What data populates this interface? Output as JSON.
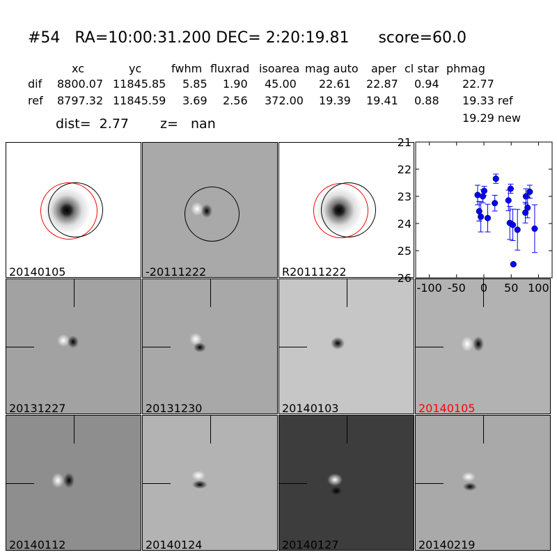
{
  "header": {
    "title": "#54   RA=10:00:31.200 DEC= 2:20:19.81      score=60.0"
  },
  "table": {
    "columns": [
      "xc",
      "yc",
      "fwhm",
      "fluxrad",
      "isoarea",
      "mag auto",
      "aper",
      "cl star",
      "phmag"
    ],
    "rows": [
      {
        "label": "dif",
        "values": [
          "8800.07",
          "11845.85",
          "5.85",
          "1.90",
          "45.00",
          "22.61",
          "22.87",
          "0.94",
          "22.77"
        ]
      },
      {
        "label": "ref",
        "values": [
          "8797.32",
          "11845.59",
          "3.69",
          "2.56",
          "372.00",
          "19.39",
          "19.41",
          "0.88",
          "19.33 ref"
        ]
      }
    ],
    "phmag_new": "19.29 new",
    "dist": "dist=  2.77",
    "z": "z=   nan"
  },
  "stamps": [
    {
      "label": "20140105",
      "bg": "#ffffff"
    },
    {
      "label": "-20111222",
      "bg": "#a9a9a9"
    },
    {
      "label": "R20111222",
      "bg": "#ffffff"
    },
    {
      "label": "20131227",
      "bg": "#a2a2a2"
    },
    {
      "label": "20131230",
      "bg": "#a8a8a8"
    },
    {
      "label": "20140103",
      "bg": "#c6c6c6"
    },
    {
      "label": "20140105",
      "bg": "#b2b2b2",
      "color": "#ff0000"
    },
    {
      "label": "20140112",
      "bg": "#8e8e8e"
    },
    {
      "label": "20140124",
      "bg": "#b3b3b3"
    },
    {
      "label": "20140127",
      "bg": "#3d3d3d"
    },
    {
      "label": "20140219",
      "bg": "#a9a9a9"
    }
  ],
  "chart_data": {
    "type": "scatter",
    "xlim": [
      -125,
      125
    ],
    "ylim": [
      26,
      21
    ],
    "y_inverted": true,
    "xticks": [
      "-100",
      "-50",
      "0",
      "50",
      "100"
    ],
    "xtick_values": [
      -100,
      -50,
      0,
      50,
      100
    ],
    "yticks": [
      "21",
      "22",
      "23",
      "24",
      "25",
      "26"
    ],
    "ytick_values": [
      21,
      22,
      23,
      24,
      25,
      26
    ],
    "marker_color": "#0000ff",
    "points": [
      {
        "x": -11.5,
        "y": 22.95,
        "err": 0.36
      },
      {
        "x": -8.6,
        "y": 23.55,
        "err": 0.36
      },
      {
        "x": -5.6,
        "y": 23.75,
        "err": 0.56
      },
      {
        "x": -2,
        "y": 23.0,
        "err": 0.24
      },
      {
        "x": 0.5,
        "y": 22.8,
        "err": 0.17
      },
      {
        "x": 7,
        "y": 23.8,
        "err": 0.51
      },
      {
        "x": 20,
        "y": 23.25,
        "err": 0.29
      },
      {
        "x": 22,
        "y": 22.35,
        "err": 0.17
      },
      {
        "x": 45,
        "y": 23.15,
        "err": 0.38
      },
      {
        "x": 49,
        "y": 22.72,
        "err": 0.17
      },
      {
        "x": 47.5,
        "y": 23.98,
        "err": 0.61
      },
      {
        "x": 53,
        "y": 24.05,
        "err": 0.58
      },
      {
        "x": 54,
        "y": 25.5,
        "err": 0.05
      },
      {
        "x": 61.5,
        "y": 24.23,
        "err": 0.75
      },
      {
        "x": 76,
        "y": 23.6,
        "err": 0.38
      },
      {
        "x": 77,
        "y": 23.0,
        "err": 0.28
      },
      {
        "x": 80,
        "y": 23.42,
        "err": 0.37
      },
      {
        "x": 84,
        "y": 22.83,
        "err": 0.24
      },
      {
        "x": 93,
        "y": 24.19,
        "err": 0.88
      }
    ]
  }
}
